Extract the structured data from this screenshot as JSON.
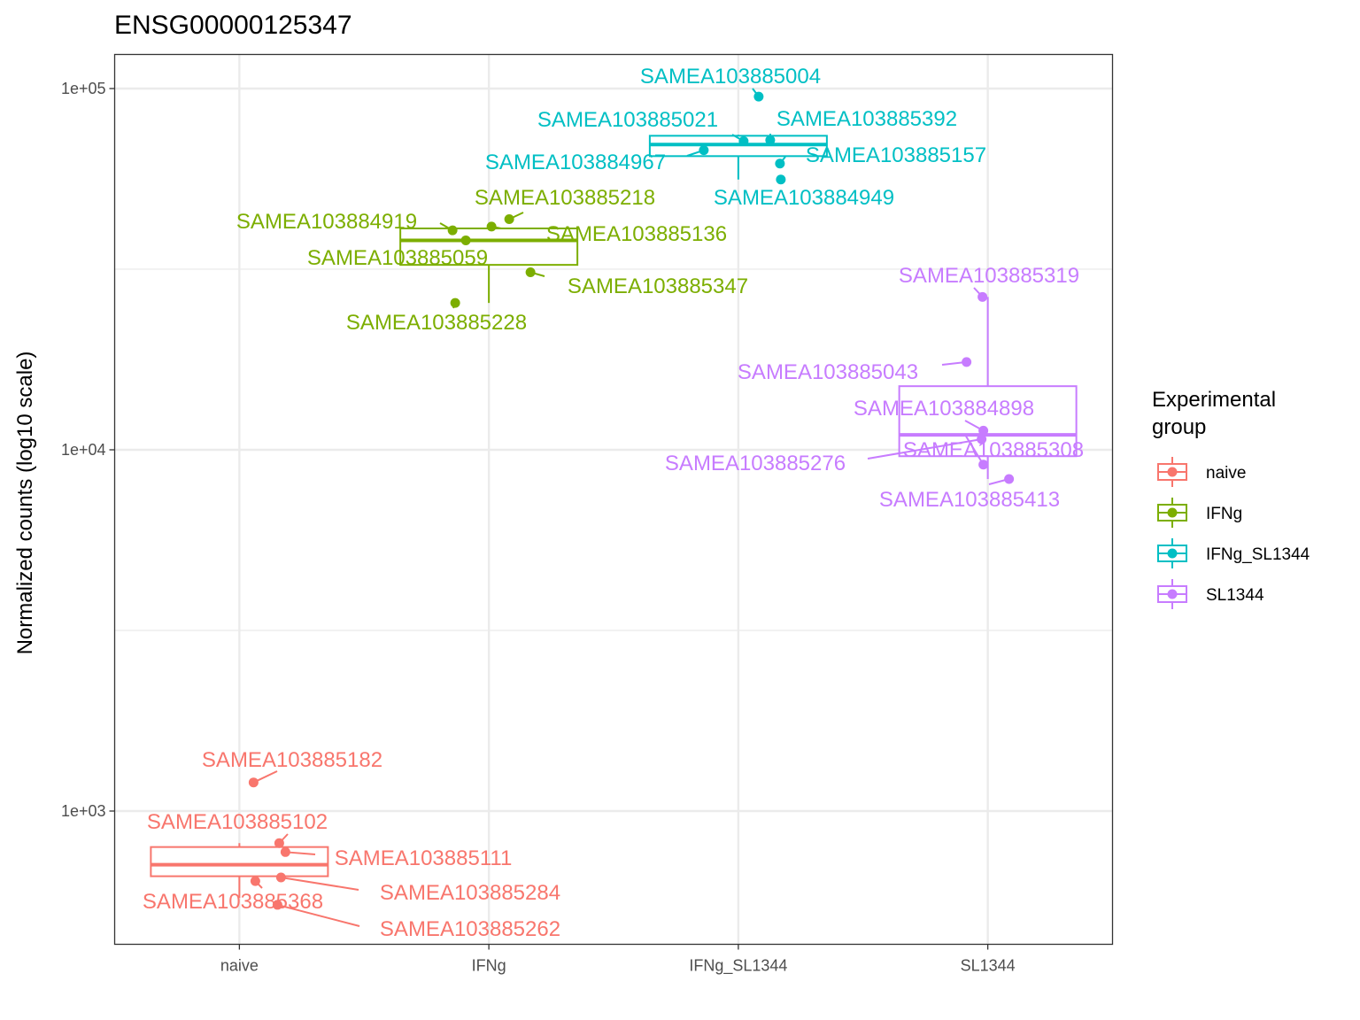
{
  "chart_data": {
    "type": "box",
    "title": "ENSG00000125347",
    "xlabel": "",
    "ylabel": "Normalized counts (log10 scale)",
    "y_scale": "log10",
    "ylim": [
      450,
      120000
    ],
    "y_ticks": [
      1000,
      10000,
      100000
    ],
    "y_tick_labels": [
      "1e+03",
      "1e+04",
      "1e+05"
    ],
    "y_minor_ticks": [
      3162,
      31623
    ],
    "grid": true,
    "categories": [
      "naive",
      "IFNg",
      "IFNg_SL1344",
      "SL1344"
    ],
    "colors": {
      "naive": "#F8766D",
      "IFNg": "#7CAE00",
      "IFNg_SL1344": "#00BFC4",
      "SL1344": "#C77CFF"
    },
    "legend": {
      "title": "Experimental group",
      "title_lines": [
        "Experimental",
        "group"
      ],
      "position": "right",
      "entries": [
        "naive",
        "IFNg",
        "IFNg_SL1344",
        "SL1344"
      ]
    },
    "boxes": [
      {
        "group": "naive",
        "whisker_low": 575,
        "q1": 660,
        "median": 710,
        "q3": 795,
        "whisker_high": 815
      },
      {
        "group": "IFNg",
        "whisker_low": 25500,
        "q1": 32500,
        "median": 38000,
        "q3": 41000,
        "whisker_high": 41500
      },
      {
        "group": "IFNg_SL1344",
        "whisker_low": 56000,
        "q1": 65000,
        "median": 70000,
        "q3": 74000,
        "whisker_high": 74500
      },
      {
        "group": "SL1344",
        "whisker_low": 8300,
        "q1": 9600,
        "median": 11000,
        "q3": 15000,
        "whisker_high": 26500
      }
    ],
    "points": [
      {
        "group": "naive",
        "sample": "SAMEA103885182",
        "value": 1200
      },
      {
        "group": "naive",
        "sample": "SAMEA103885102",
        "value": 815
      },
      {
        "group": "naive",
        "sample": "SAMEA103885111",
        "value": 770
      },
      {
        "group": "naive",
        "sample": "SAMEA103885284",
        "value": 655
      },
      {
        "group": "naive",
        "sample": "SAMEA103885368",
        "value": 640
      },
      {
        "group": "naive",
        "sample": "SAMEA103885262",
        "value": 550
      },
      {
        "group": "IFNg",
        "sample": "SAMEA103885218",
        "value": 43500
      },
      {
        "group": "IFNg",
        "sample": "SAMEA103884919",
        "value": 40500
      },
      {
        "group": "IFNg",
        "sample": "SAMEA103885136",
        "value": 41500
      },
      {
        "group": "IFNg",
        "sample": "SAMEA103885059",
        "value": 38000
      },
      {
        "group": "IFNg",
        "sample": "SAMEA103885347",
        "value": 31000
      },
      {
        "group": "IFNg",
        "sample": "SAMEA103885228",
        "value": 25500
      },
      {
        "group": "IFNg_SL1344",
        "sample": "SAMEA103885004",
        "value": 95000
      },
      {
        "group": "IFNg_SL1344",
        "sample": "SAMEA103885021",
        "value": 71500
      },
      {
        "group": "IFNg_SL1344",
        "sample": "SAMEA103885392",
        "value": 72000
      },
      {
        "group": "IFNg_SL1344",
        "sample": "SAMEA103884967",
        "value": 67500
      },
      {
        "group": "IFNg_SL1344",
        "sample": "SAMEA103885157",
        "value": 62000
      },
      {
        "group": "IFNg_SL1344",
        "sample": "SAMEA103884949",
        "value": 56000
      },
      {
        "group": "SL1344",
        "sample": "SAMEA103885319",
        "value": 26500
      },
      {
        "group": "SL1344",
        "sample": "SAMEA103885043",
        "value": 17500
      },
      {
        "group": "SL1344",
        "sample": "SAMEA103884898",
        "value": 11300
      },
      {
        "group": "SL1344",
        "sample": "SAMEA103885308",
        "value": 9100
      },
      {
        "group": "SL1344",
        "sample": "SAMEA103885276",
        "value": 10700
      },
      {
        "group": "SL1344",
        "sample": "SAMEA103885413",
        "value": 8300
      }
    ]
  }
}
